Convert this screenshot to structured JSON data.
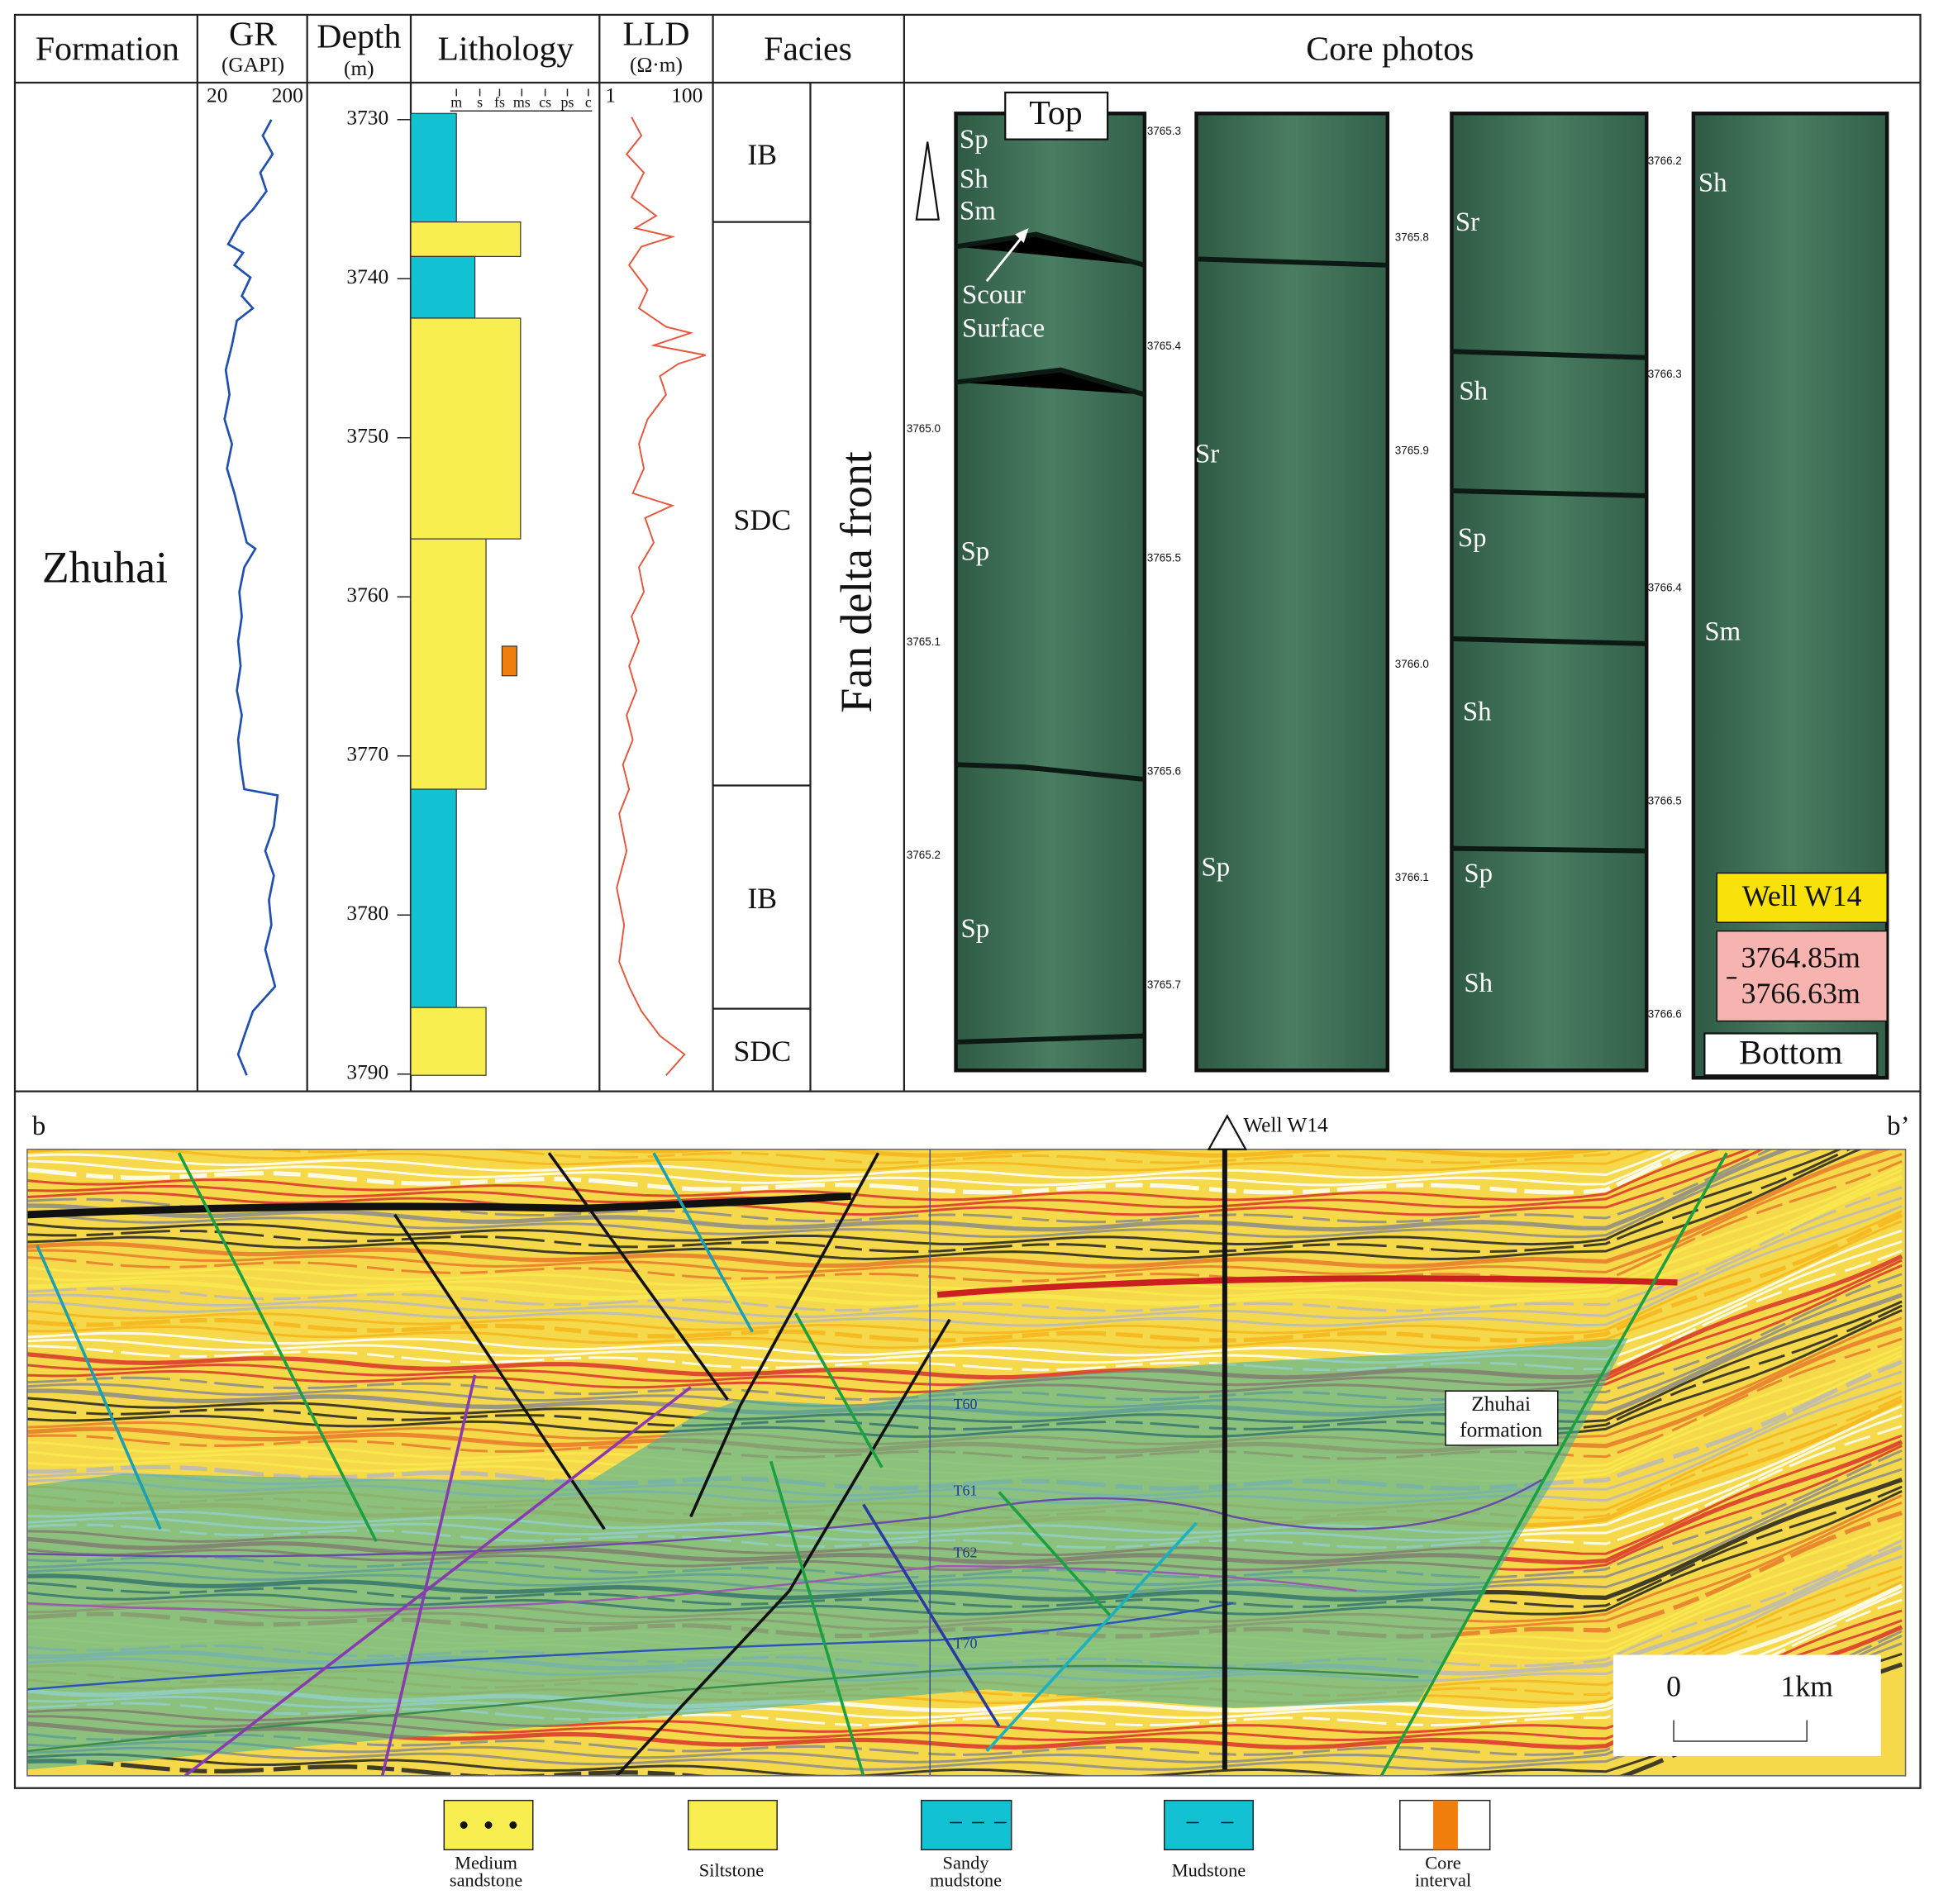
{
  "header": {
    "columns": [
      "Formation",
      "GR",
      "Depth",
      "Lithology",
      "LLD",
      "Facies",
      "Core photos"
    ],
    "gr_unit": "(GAPI)",
    "depth_unit": "(m)",
    "lld_unit": "(Ω·m)"
  },
  "log": {
    "formation": "Zhuhai",
    "gr_scale": [
      "20",
      "200"
    ],
    "lld_scale": [
      "1",
      "100"
    ],
    "grain_size": [
      "m",
      "s",
      "fs",
      "ms",
      "cs",
      "ps",
      "c"
    ],
    "depths": [
      3730,
      3740,
      3750,
      3760,
      3770,
      3780,
      3790
    ],
    "facies": [
      "IB",
      "SDC",
      "IB",
      "SDC"
    ],
    "facies_zone": "Fan delta front"
  },
  "core": {
    "top": "Top",
    "bottom": "Bottom",
    "well": "Well W14",
    "interval": [
      "3764.85m",
      "3766.63m"
    ],
    "annotation": [
      "Scour",
      "Surface"
    ],
    "depth_marks": [
      "3765.0",
      "3765.1",
      "3765.2",
      "3765.3",
      "3765.4",
      "3765.5",
      "3765.6",
      "3765.7",
      "3765.8",
      "3765.9",
      "3766.0",
      "3766.1",
      "3766.2",
      "3766.3",
      "3766.4",
      "3766.5",
      "3766.6"
    ],
    "structures": [
      "Sp",
      "Sh",
      "Sm",
      "Sp",
      "Sp",
      "Sr",
      "Sp",
      "Sr",
      "Sh",
      "Sp",
      "Sh",
      "Sp",
      "Sh",
      "Sh",
      "Sm"
    ]
  },
  "seismic": {
    "left": "b",
    "right": "b’",
    "well": "Well W14",
    "formation": [
      "Zhuhai",
      "formation"
    ],
    "horizons": [
      "T60",
      "T61",
      "T62",
      "T70"
    ],
    "scale": [
      "0",
      "1km"
    ]
  },
  "legend": [
    [
      "Medium",
      "sandstone"
    ],
    [
      "Siltstone"
    ],
    [
      "Sandy",
      "mudstone"
    ],
    [
      "Mudstone"
    ],
    [
      "Core",
      "interval"
    ]
  ]
}
